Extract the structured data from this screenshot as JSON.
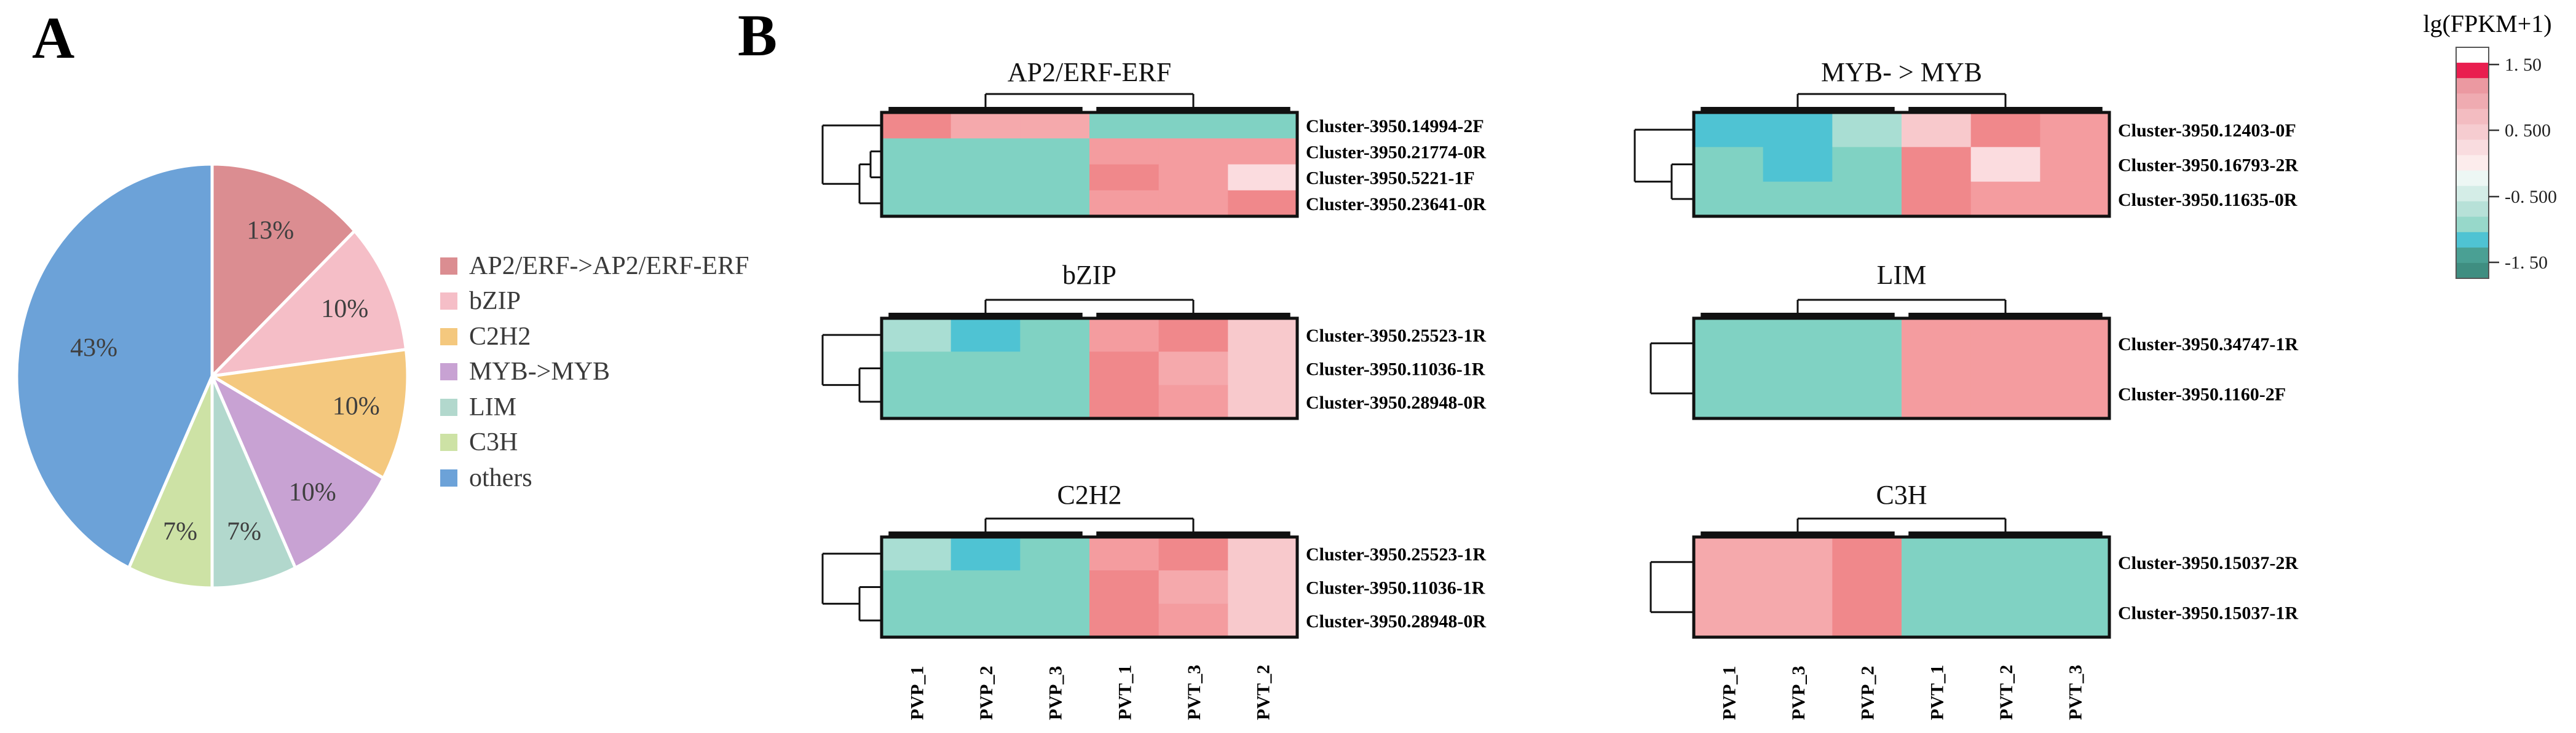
{
  "panel_a_label": "A",
  "panel_b_label": "B",
  "palette": {
    "T": "#80d2c3",
    "TL": "#a9ded3",
    "TD": "#4fc3d3",
    "P": "#f49c9f",
    "PD": "#f0888b",
    "PM": "#f5a9ac",
    "PL": "#f8c9cc",
    "PVL": "#fbdcdf"
  },
  "chart_data": [
    {
      "id": "pie",
      "type": "pie",
      "panel": "A",
      "categories": [
        "AP2/ERF->AP2/ERF-ERF",
        "bZIP",
        "C2H2",
        "MYB->MYB",
        "LIM",
        "C3H",
        "others"
      ],
      "values": [
        13,
        10,
        10,
        10,
        7,
        7,
        43
      ],
      "pct_labels": [
        "13%",
        "10%",
        "10%",
        "10%",
        "7%",
        "7%",
        "43%"
      ],
      "colors": [
        "#db8d91",
        "#f5bec7",
        "#f4c87e",
        "#c8a2d3",
        "#b2d8cd",
        "#cde2a5",
        "#6ca2d8"
      ],
      "legend_position": "right",
      "start_angle_deg": 0,
      "direction": "clockwise"
    },
    {
      "id": "ap2",
      "type": "heatmap",
      "panel": "B",
      "title": "AP2/ERF-ERF",
      "row_labels": [
        "Cluster-3950.14994-2F",
        "Cluster-3950.21774-0R",
        "Cluster-3950.5221-1F",
        "Cluster-3950.23641-0R"
      ],
      "col_labels": [
        "PVP_1",
        "PVP_2",
        "PVP_3",
        "PVT_1",
        "PVT_3",
        "PVT_2"
      ],
      "col_labels_shown": false,
      "cells": [
        [
          "PD",
          "PM",
          "PM",
          "T",
          "T",
          "T"
        ],
        [
          "T",
          "T",
          "T",
          "P",
          "P",
          "P"
        ],
        [
          "T",
          "T",
          "T",
          "PD",
          "P",
          "PVL"
        ],
        [
          "T",
          "T",
          "T",
          "P",
          "P",
          "PD"
        ]
      ]
    },
    {
      "id": "myb",
      "type": "heatmap",
      "panel": "B",
      "title": "MYB- > MYB",
      "row_labels": [
        "Cluster-3950.12403-0F",
        "Cluster-3950.16793-2R",
        "Cluster-3950.11635-0R"
      ],
      "col_labels": [
        "PVP_1",
        "PVP_3",
        "PVP_2",
        "PVT_1",
        "PVT_2",
        "PVT_3"
      ],
      "col_labels_shown": false,
      "cells": [
        [
          "TD",
          "TD",
          "TL",
          "PL",
          "PD",
          "P"
        ],
        [
          "T",
          "TD",
          "T",
          "PD",
          "PVL",
          "P"
        ],
        [
          "T",
          "T",
          "T",
          "PD",
          "P",
          "P"
        ]
      ]
    },
    {
      "id": "bzip",
      "type": "heatmap",
      "panel": "B",
      "title": "bZIP",
      "row_labels": [
        "Cluster-3950.25523-1R",
        "Cluster-3950.11036-1R",
        "Cluster-3950.28948-0R"
      ],
      "col_labels": [
        "PVP_1",
        "PVP_2",
        "PVP_3",
        "PVT_1",
        "PVT_3",
        "PVT_2"
      ],
      "col_labels_shown": false,
      "cells": [
        [
          "TL",
          "TD",
          "T",
          "P",
          "PD",
          "PL"
        ],
        [
          "T",
          "T",
          "T",
          "PD",
          "PM",
          "PL"
        ],
        [
          "T",
          "T",
          "T",
          "PD",
          "P",
          "PL"
        ]
      ]
    },
    {
      "id": "lim",
      "type": "heatmap",
      "panel": "B",
      "title": "LIM",
      "row_labels": [
        "Cluster-3950.34747-1R",
        "Cluster-3950.1160-2F"
      ],
      "col_labels": [
        "PVP_1",
        "PVP_3",
        "PVP_2",
        "PVT_1",
        "PVT_2",
        "PVT_3"
      ],
      "col_labels_shown": false,
      "cells": [
        [
          "T",
          "T",
          "T",
          "P",
          "P",
          "P"
        ],
        [
          "T",
          "T",
          "T",
          "P",
          "P",
          "P"
        ]
      ]
    },
    {
      "id": "c2h2",
      "type": "heatmap",
      "panel": "B",
      "title": "C2H2",
      "row_labels": [
        "Cluster-3950.25523-1R",
        "Cluster-3950.11036-1R",
        "Cluster-3950.28948-0R"
      ],
      "col_labels": [
        "PVP_1",
        "PVP_2",
        "PVP_3",
        "PVT_1",
        "PVT_3",
        "PVT_2"
      ],
      "col_labels_shown": true,
      "cells": [
        [
          "TL",
          "TD",
          "T",
          "P",
          "PD",
          "PL"
        ],
        [
          "T",
          "T",
          "T",
          "PD",
          "PM",
          "PL"
        ],
        [
          "T",
          "T",
          "T",
          "PD",
          "P",
          "PL"
        ]
      ]
    },
    {
      "id": "c3h",
      "type": "heatmap",
      "panel": "B",
      "title": "C3H",
      "row_labels": [
        "Cluster-3950.15037-2R",
        "Cluster-3950.15037-1R"
      ],
      "col_labels": [
        "PVP_1",
        "PVP_3",
        "PVP_2",
        "PVT_1",
        "PVT_2",
        "PVT_3"
      ],
      "col_labels_shown": true,
      "cells": [
        [
          "PM",
          "PM",
          "PD",
          "T",
          "T",
          "T"
        ],
        [
          "PM",
          "PM",
          "PD",
          "T",
          "T",
          "T"
        ]
      ]
    },
    {
      "id": "colorbar",
      "type": "colorbar",
      "title": "lg(FPKM+1)",
      "tick_labels": [
        "1. 50",
        "0. 500",
        "-0. 500",
        "-1. 50"
      ],
      "tick_values": [
        1.5,
        0.5,
        -0.5,
        -1.5
      ],
      "range": [
        1.75,
        -1.75
      ],
      "segments": [
        "#ffffff",
        "#e91e4f",
        "#eb99a1",
        "#efabb1",
        "#f3bcc1",
        "#f6ccd0",
        "#f9dcdf",
        "#fcecec",
        "#edf7f4",
        "#d4ede7",
        "#b7e1d8",
        "#97d8ca",
        "#4fc3d3",
        "#4aa094",
        "#3f8e81"
      ]
    }
  ]
}
